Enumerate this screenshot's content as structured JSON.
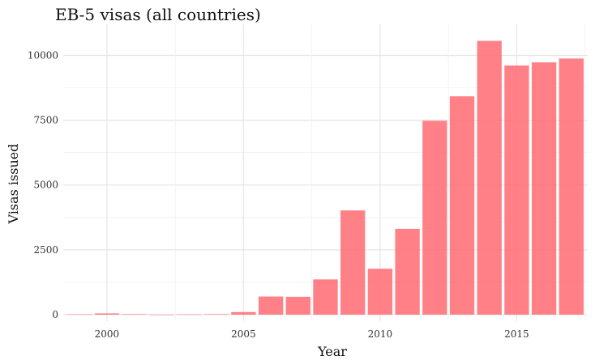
{
  "chart_data": {
    "type": "bar",
    "title": "EB-5 visas (all countries)",
    "xlabel": "Year",
    "ylabel": "Visas issued",
    "x": [
      1999,
      2000,
      2001,
      2002,
      2003,
      2004,
      2005,
      2006,
      2007,
      2008,
      2009,
      2010,
      2011,
      2012,
      2013,
      2014,
      2015,
      2016,
      2017
    ],
    "values": [
      15,
      50,
      20,
      5,
      10,
      20,
      100,
      700,
      690,
      1360,
      4020,
      1770,
      3310,
      7480,
      8420,
      10560,
      9610,
      9730,
      9880
    ],
    "xlim": [
      1998.4,
      2017.6
    ],
    "ylim": [
      -250,
      11200
    ],
    "x_ticks": [
      2000,
      2005,
      2010,
      2015
    ],
    "y_ticks": [
      0,
      2500,
      5000,
      7500,
      10000
    ],
    "bar_color": "#ff6f76",
    "bar_opacity": 0.88,
    "grid": true,
    "legend": "none"
  }
}
